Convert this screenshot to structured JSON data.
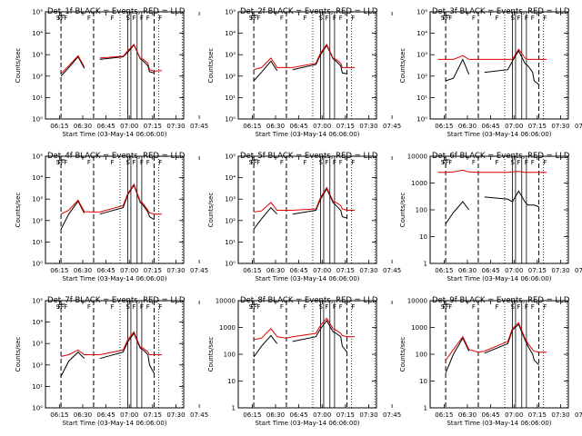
{
  "figure": {
    "xlabel": "Start Time (03-May-14 06:06:00)",
    "ylabel": "Counts/sec",
    "xticks": [
      "06:15",
      "06:30",
      "06:45",
      "07:00",
      "07:15",
      "07:30",
      "07:45"
    ],
    "colors": {
      "events": "#000000",
      "lld": "#e00000"
    },
    "markers": [
      "S",
      "F",
      "F",
      "F",
      "F",
      "F",
      "S",
      "F",
      "F",
      "F",
      "F"
    ]
  },
  "chart_data": [
    {
      "type": "line",
      "title": "Det_1f BLACK = Events, RED = LLD",
      "yscale": "log",
      "ylim": [
        1,
        100000
      ],
      "yticks": [
        "10⁰",
        "10¹",
        "10²",
        "10³",
        "10⁴",
        "10⁵"
      ],
      "x": [
        10,
        15,
        20,
        26,
        30,
        36,
        40,
        55,
        58,
        62,
        66,
        68,
        71,
        72,
        75,
        80
      ],
      "series": [
        {
          "name": "LLD",
          "values": [
            null,
            130,
            300,
            900,
            270,
            null,
            700,
            850,
            1500,
            3000,
            700,
            600,
            400,
            200,
            170,
            180
          ]
        },
        {
          "name": "Events",
          "values": [
            null,
            100,
            250,
            800,
            230,
            null,
            600,
            800,
            1300,
            2800,
            650,
            500,
            300,
            160,
            140,
            null
          ]
        }
      ]
    },
    {
      "type": "line",
      "title": "Det_2f BLACK = Events, RED = LLD",
      "yscale": "log",
      "ylim": [
        1,
        100000
      ],
      "yticks": [
        "10⁰",
        "10¹",
        "10²",
        "10³",
        "10⁴",
        "10⁵"
      ],
      "x": [
        10,
        15,
        20,
        26,
        30,
        36,
        40,
        55,
        58,
        62,
        66,
        68,
        71,
        72,
        75,
        80
      ],
      "series": [
        {
          "name": "LLD",
          "values": [
            null,
            200,
            250,
            700,
            250,
            250,
            250,
            400,
            1200,
            3000,
            700,
            600,
            400,
            250,
            250,
            250
          ]
        },
        {
          "name": "Events",
          "values": [
            null,
            60,
            150,
            500,
            180,
            null,
            200,
            350,
            1000,
            2700,
            650,
            500,
            300,
            140,
            130,
            null
          ]
        }
      ]
    },
    {
      "type": "line",
      "title": "Det_3f BLACK = Events, RED = LLD",
      "yscale": "log",
      "ylim": [
        1,
        100000
      ],
      "yticks": [
        "10⁰",
        "10¹",
        "10²",
        "10³",
        "10⁴",
        "10⁵"
      ],
      "x": [
        10,
        15,
        20,
        26,
        30,
        36,
        40,
        55,
        58,
        62,
        66,
        68,
        71,
        72,
        75,
        80
      ],
      "series": [
        {
          "name": "LLD",
          "values": [
            600,
            600,
            600,
            900,
            600,
            600,
            600,
            600,
            600,
            1800,
            700,
            600,
            600,
            600,
            600,
            600
          ]
        },
        {
          "name": "Events",
          "values": [
            null,
            60,
            80,
            600,
            120,
            null,
            150,
            200,
            500,
            1500,
            400,
            300,
            150,
            60,
            40,
            null
          ]
        }
      ]
    },
    {
      "type": "line",
      "title": "Det_4f BLACK = Events, RED = LLD",
      "yscale": "log",
      "ylim": [
        1,
        100000
      ],
      "yticks": [
        "10⁰",
        "10¹",
        "10²",
        "10³",
        "10⁴",
        "10⁵"
      ],
      "x": [
        10,
        15,
        20,
        26,
        30,
        36,
        40,
        55,
        58,
        62,
        66,
        68,
        71,
        72,
        75,
        80
      ],
      "series": [
        {
          "name": "LLD",
          "values": [
            null,
            200,
            300,
            900,
            260,
            250,
            250,
            500,
            1800,
            5000,
            800,
            600,
            300,
            230,
            200,
            200
          ]
        },
        {
          "name": "Events",
          "values": [
            null,
            40,
            200,
            800,
            220,
            null,
            200,
            400,
            1600,
            4500,
            700,
            500,
            250,
            150,
            110,
            null
          ]
        }
      ]
    },
    {
      "type": "line",
      "title": "Det_5f BLACK = Events, RED = LLD",
      "yscale": "log",
      "ylim": [
        1,
        100000
      ],
      "yticks": [
        "10⁰",
        "10¹",
        "10²",
        "10³",
        "10⁴",
        "10⁵"
      ],
      "x": [
        10,
        15,
        20,
        26,
        30,
        36,
        40,
        55,
        58,
        62,
        66,
        68,
        71,
        72,
        75,
        80
      ],
      "series": [
        {
          "name": "LLD",
          "values": [
            null,
            250,
            280,
            700,
            300,
            300,
            300,
            350,
            1200,
            3500,
            800,
            700,
            500,
            350,
            300,
            300
          ]
        },
        {
          "name": "Events",
          "values": [
            null,
            40,
            120,
            400,
            200,
            null,
            200,
            300,
            1000,
            3000,
            700,
            500,
            300,
            150,
            130,
            null
          ]
        }
      ]
    },
    {
      "type": "line",
      "title": "Det_6f BLACK = Events, RED = LLD",
      "yscale": "log",
      "ylim": [
        1,
        10000
      ],
      "yticks": [
        "1",
        "10",
        "100",
        "1000",
        "10000"
      ],
      "x": [
        10,
        15,
        20,
        26,
        30,
        36,
        40,
        55,
        58,
        62,
        66,
        68,
        71,
        72,
        75,
        80
      ],
      "series": [
        {
          "name": "LLD",
          "values": [
            2500,
            2500,
            2600,
            3000,
            2600,
            2500,
            2500,
            2500,
            2600,
            2700,
            2500,
            2500,
            2500,
            2500,
            2500,
            2500
          ]
        },
        {
          "name": "Events",
          "values": [
            null,
            30,
            80,
            200,
            100,
            null,
            300,
            250,
            200,
            500,
            200,
            150,
            150,
            150,
            130,
            null
          ]
        }
      ]
    },
    {
      "type": "line",
      "title": "Det_7f BLACK = Events, RED = LLD",
      "yscale": "log",
      "ylim": [
        1,
        100000
      ],
      "yticks": [
        "10⁰",
        "10¹",
        "10²",
        "10³",
        "10⁴",
        "10⁵"
      ],
      "x": [
        10,
        15,
        20,
        26,
        30,
        36,
        40,
        55,
        58,
        62,
        66,
        68,
        71,
        72,
        75,
        80
      ],
      "series": [
        {
          "name": "LLD",
          "values": [
            null,
            250,
            300,
            500,
            300,
            300,
            300,
            500,
            1500,
            3500,
            700,
            600,
            400,
            300,
            300,
            300
          ]
        },
        {
          "name": "Events",
          "values": [
            null,
            30,
            150,
            400,
            200,
            null,
            200,
            400,
            1200,
            3000,
            600,
            500,
            300,
            100,
            40,
            null
          ]
        }
      ]
    },
    {
      "type": "line",
      "title": "Det_8f BLACK = Events, RED = LLD",
      "yscale": "log",
      "ylim": [
        1,
        10000
      ],
      "yticks": [
        "1",
        "10",
        "100",
        "1000",
        "10000"
      ],
      "x": [
        10,
        15,
        20,
        26,
        30,
        36,
        40,
        55,
        58,
        62,
        66,
        68,
        71,
        72,
        75,
        80
      ],
      "series": [
        {
          "name": "LLD",
          "values": [
            null,
            350,
            400,
            900,
            450,
            400,
            450,
            600,
            1200,
            2200,
            900,
            800,
            600,
            500,
            450,
            450
          ]
        },
        {
          "name": "Events",
          "values": [
            null,
            80,
            200,
            500,
            250,
            null,
            300,
            450,
            900,
            1800,
            700,
            600,
            450,
            200,
            120,
            null
          ]
        }
      ]
    },
    {
      "type": "line",
      "title": "Det_9f BLACK = Events, RED = LLD",
      "yscale": "log",
      "ylim": [
        1,
        10000
      ],
      "yticks": [
        "1",
        "10",
        "100",
        "1000",
        "10000"
      ],
      "x": [
        10,
        15,
        20,
        26,
        30,
        36,
        40,
        55,
        58,
        62,
        66,
        68,
        71,
        72,
        75,
        80
      ],
      "series": [
        {
          "name": "LLD",
          "values": [
            null,
            60,
            150,
            450,
            150,
            120,
            130,
            300,
            900,
            1500,
            400,
            250,
            150,
            130,
            120,
            120
          ]
        },
        {
          "name": "Events",
          "values": [
            null,
            20,
            100,
            400,
            130,
            null,
            110,
            250,
            800,
            1300,
            350,
            200,
            100,
            60,
            40,
            null
          ]
        }
      ]
    }
  ]
}
